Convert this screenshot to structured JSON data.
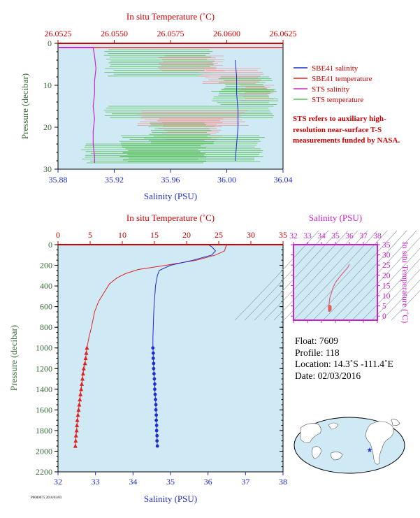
{
  "colors": {
    "background": "#cfeaf5",
    "sbe41_salinity": "#1f2bd1",
    "sbe41_temperature": "#e02222",
    "sts_salinity": "#d024d0",
    "sts_temperature": "#58c058",
    "sts_temperature_alt": "#f09a9a",
    "temp_axis": "#cc0000",
    "sal_axis": "#1f2bd1",
    "pressure_axis": "#3a6b3a",
    "ts_axis": "#cc22cc"
  },
  "legend": {
    "items": [
      {
        "label": "SBE41 salinity",
        "color": "#1f2bd1"
      },
      {
        "label": "SBE41 temperature",
        "color": "#e02222"
      },
      {
        "label": "STS salinity",
        "color": "#d024d0"
      },
      {
        "label": "STS temperature",
        "color": "#58c058"
      }
    ],
    "note": "STS refers to auxiliary high-resolution near-surface T-S measurements funded by NASA."
  },
  "info": {
    "float": "Float:  7609",
    "profile": "Profile:  118",
    "location": "Location:  14.3˚S  -111.4˚E",
    "date": "Date:  02/03/2016"
  },
  "footer": "P0000075 2016/03/03",
  "chart_data": [
    {
      "type": "line",
      "name": "near-surface profile",
      "title": "",
      "top_axis": {
        "label": "In situ Temperature (˚C)",
        "ticks": [
          "26.0525",
          "26.0550",
          "26.0575",
          "26.0600",
          "26.0625"
        ],
        "range": [
          26.0525,
          26.0625
        ]
      },
      "bottom_axis": {
        "label": "Salinity (PSU)",
        "ticks": [
          "35.88",
          "35.92",
          "35.96",
          "36.00",
          "36.04"
        ],
        "range": [
          35.88,
          36.04
        ]
      },
      "y_axis": {
        "label": "Pressure (decibar)",
        "ticks": [
          "0",
          "10",
          "20",
          "30"
        ],
        "range": [
          0,
          30
        ],
        "inverted": true
      },
      "series": [
        {
          "name": "SBE41 salinity",
          "pressure": [
            4,
            8,
            12,
            16,
            20,
            24,
            28
          ],
          "values": [
            36.006,
            36.007,
            36.007,
            36.008,
            36.008,
            36.007,
            36.006
          ]
        },
        {
          "name": "STS salinity",
          "pressure": [
            1,
            3,
            6,
            9,
            12,
            15,
            18,
            21,
            24,
            27,
            28.5
          ],
          "values": [
            35.905,
            35.906,
            35.907,
            35.906,
            35.906,
            35.905,
            35.906,
            35.905,
            35.905,
            35.906,
            35.906
          ]
        },
        {
          "name": "SBE41 temperature",
          "pressure": [
            0.5,
            1
          ],
          "values": [
            26.0625,
            26.0625
          ]
        }
      ]
    },
    {
      "type": "line",
      "name": "full profile",
      "title": "",
      "top_axis": {
        "label": "In situ Temperature (˚C)",
        "ticks": [
          "0",
          "5",
          "10",
          "15",
          "20",
          "25",
          "30",
          "35"
        ],
        "range": [
          0,
          35
        ]
      },
      "bottom_axis": {
        "label": "Salinity (PSU)",
        "ticks": [
          "32",
          "33",
          "34",
          "35",
          "36",
          "37",
          "38"
        ],
        "range": [
          32,
          38
        ]
      },
      "y_axis": {
        "label": "Pressure (decibar)",
        "ticks": [
          "0",
          "200",
          "400",
          "600",
          "800",
          "1000",
          "1200",
          "1400",
          "1600",
          "1800",
          "2000",
          "2200"
        ],
        "range": [
          0,
          2200
        ],
        "inverted": true
      },
      "series": [
        {
          "name": "SBE41 temperature",
          "pressure": [
            0,
            20,
            60,
            100,
            150,
            200,
            240,
            280,
            320,
            380,
            450,
            550,
            650,
            800,
            900,
            1000,
            1050,
            1100,
            1150,
            1200,
            1250,
            1300,
            1350,
            1400,
            1450,
            1500,
            1550,
            1600,
            1650,
            1700,
            1750,
            1800,
            1850,
            1900,
            1950
          ],
          "values": [
            26.3,
            26.1,
            25.9,
            24.5,
            21.5,
            16.8,
            12.5,
            10.5,
            9.2,
            8.0,
            7.3,
            6.3,
            5.7,
            5.2,
            4.8,
            4.5,
            4.4,
            4.3,
            4.2,
            4.0,
            3.9,
            3.8,
            3.7,
            3.6,
            3.5,
            3.4,
            3.3,
            3.2,
            3.1,
            3.0,
            2.95,
            2.9,
            2.8,
            2.75,
            2.7
          ]
        },
        {
          "name": "SBE41 salinity",
          "pressure": [
            0,
            20,
            60,
            100,
            150,
            200,
            250,
            300,
            400,
            500,
            600,
            700,
            800,
            900,
            1000,
            1050,
            1100,
            1150,
            1200,
            1250,
            1300,
            1350,
            1400,
            1450,
            1500,
            1550,
            1600,
            1650,
            1700,
            1750,
            1800,
            1850,
            1900,
            1950
          ],
          "values": [
            36.0,
            36.1,
            36.2,
            36.1,
            35.6,
            35.0,
            34.7,
            34.65,
            34.6,
            34.58,
            34.56,
            34.55,
            34.54,
            34.53,
            34.53,
            34.54,
            34.54,
            34.55,
            34.55,
            34.56,
            34.57,
            34.58,
            34.58,
            34.59,
            34.6,
            34.61,
            34.61,
            34.62,
            34.62,
            34.63,
            34.63,
            34.64,
            34.64,
            34.65
          ]
        }
      ]
    },
    {
      "type": "scatter",
      "name": "T-S diagram",
      "title": "",
      "top_axis": {
        "label": "Salinity (PSU)",
        "ticks": [
          "32",
          "33",
          "34",
          "35",
          "36",
          "37",
          "38"
        ],
        "range": [
          32,
          38
        ]
      },
      "right_axis": {
        "label": "In situ Temperature (˚C)",
        "ticks": [
          "0",
          "5",
          "10",
          "15",
          "20",
          "25",
          "30",
          "35"
        ],
        "range": [
          -2,
          35
        ]
      },
      "series": [
        {
          "name": "profile",
          "salinity": [
            36.0,
            35.9,
            35.4,
            35.0,
            34.8,
            34.7,
            34.6,
            34.58,
            34.56,
            34.54,
            34.55,
            34.6,
            34.65
          ],
          "temperature": [
            25.5,
            24.0,
            20.0,
            16.5,
            13.5,
            11.0,
            9.0,
            8.0,
            7.0,
            5.5,
            4.5,
            3.5,
            2.7
          ]
        }
      ]
    }
  ]
}
